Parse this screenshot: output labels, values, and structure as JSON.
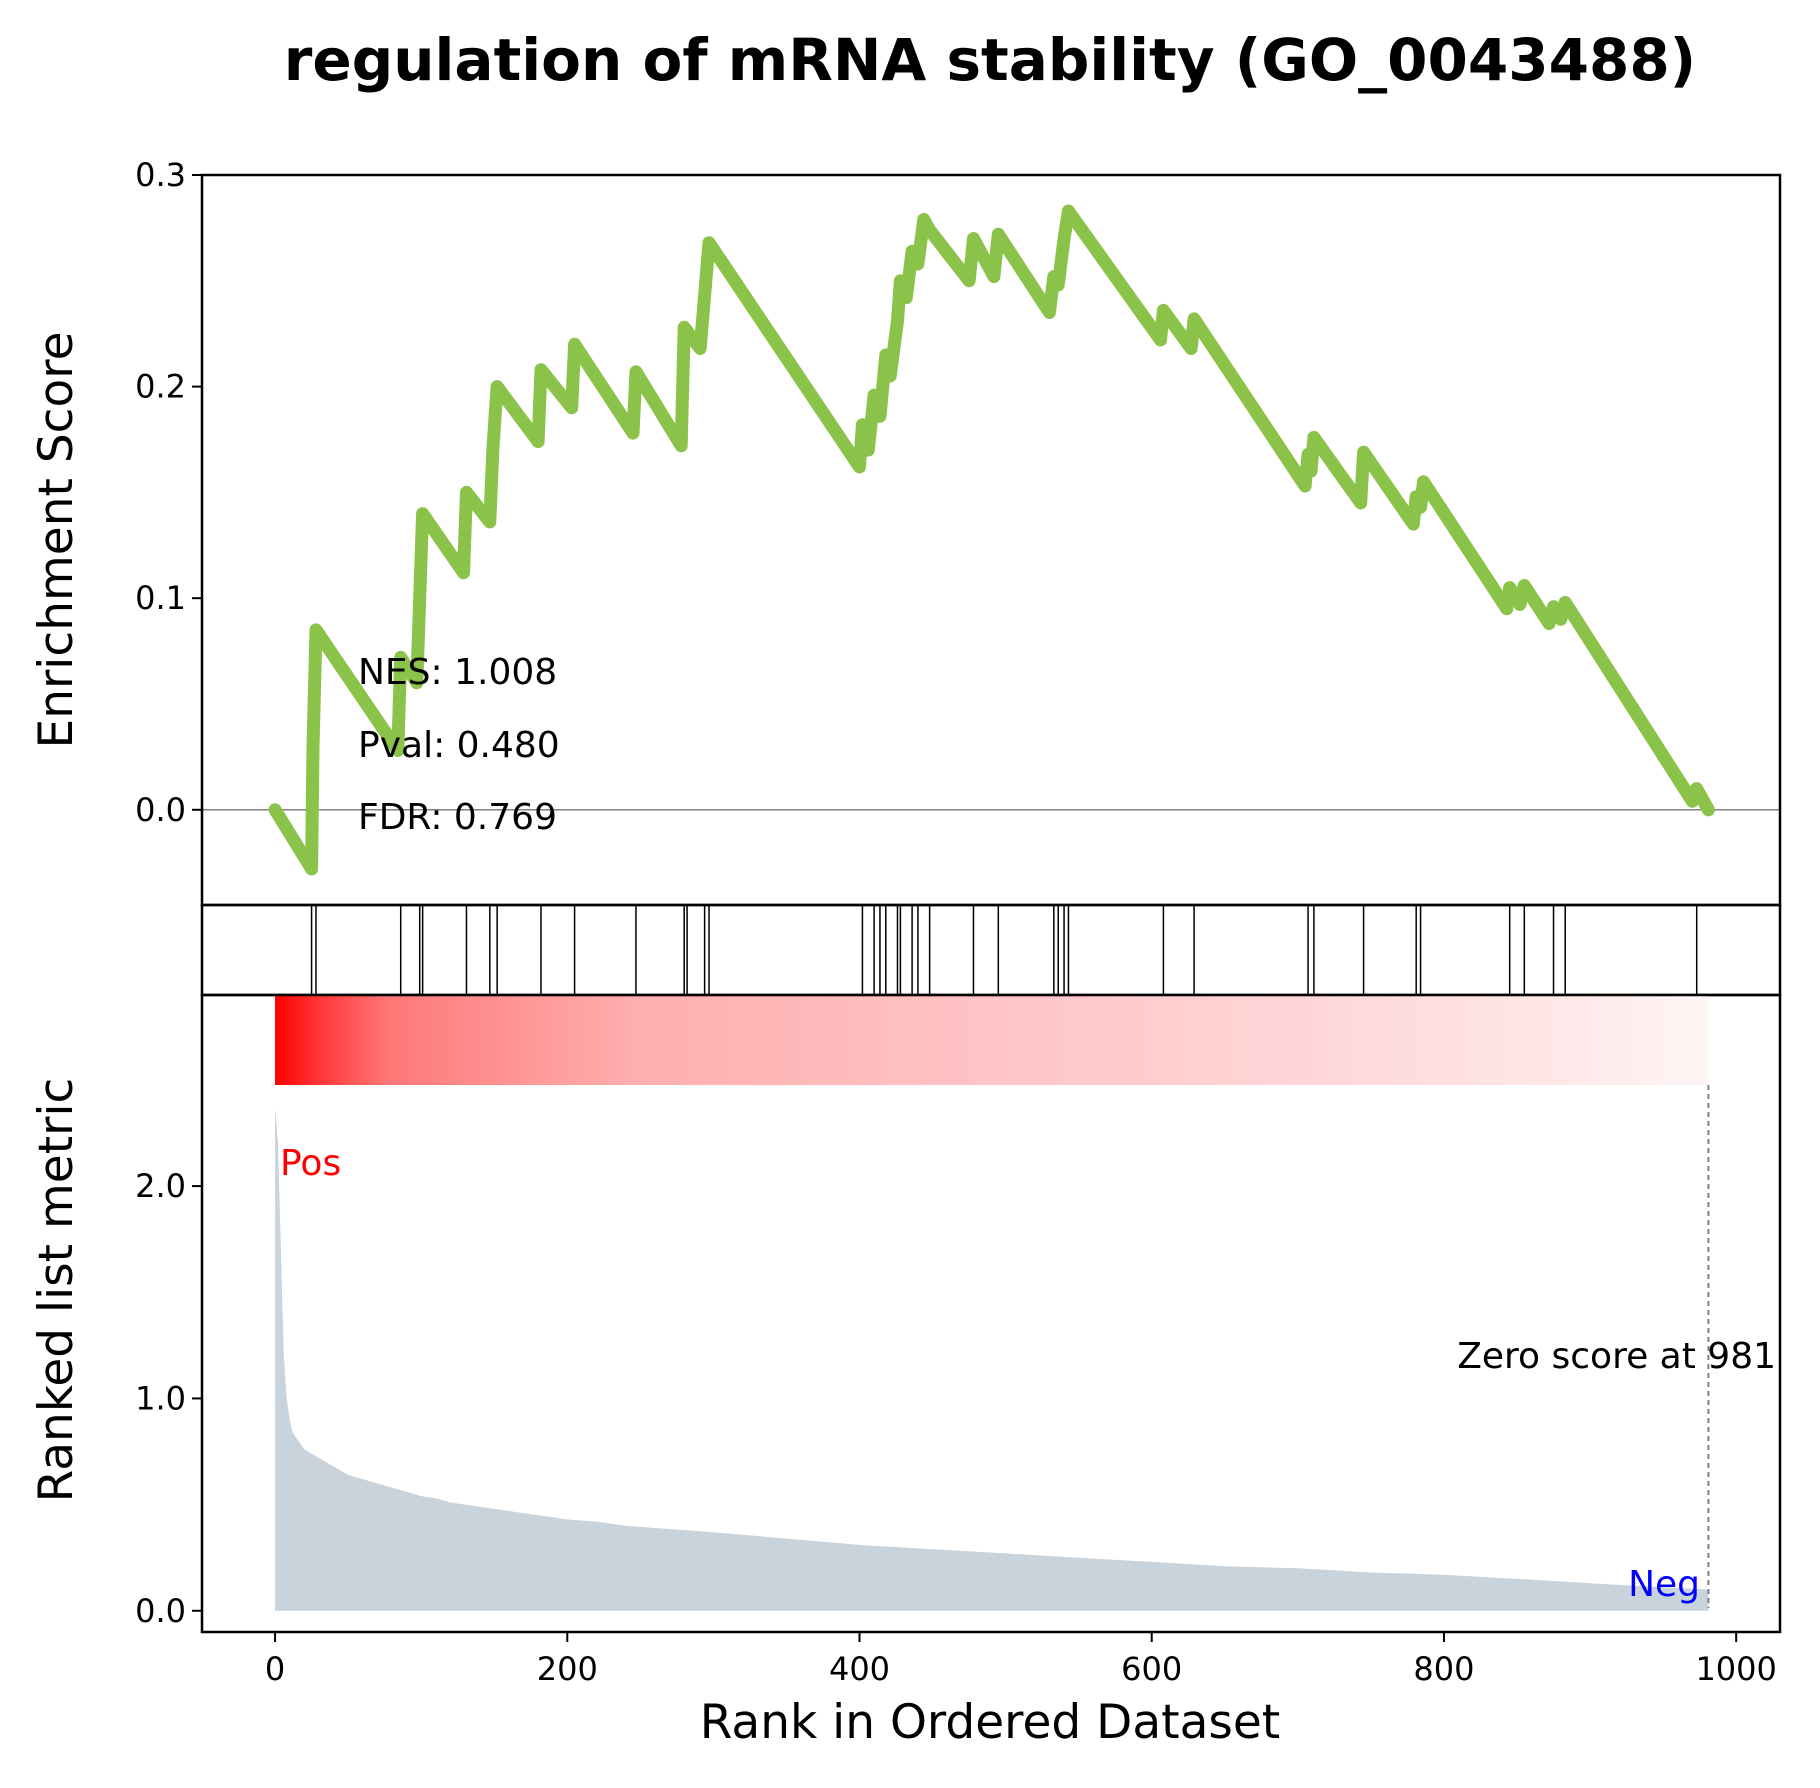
{
  "chart_data": {
    "type": "line",
    "title": "regulation of mRNA stability (GO_0043488)",
    "xlabel": "Rank in Ordered Dataset",
    "xlim": [
      -50,
      1030
    ],
    "x_ticks": [
      0,
      200,
      400,
      600,
      800,
      1000
    ],
    "es_panel": {
      "ylabel": "Enrichment Score",
      "ylim": [
        -0.045,
        0.3
      ],
      "y_ticks": [
        "0.0",
        "0.1",
        "0.2",
        "0.3"
      ],
      "line_color": "#8bc34a",
      "x": [
        0,
        25,
        26,
        28,
        84,
        86,
        97,
        99,
        101,
        129,
        131,
        147,
        149,
        152,
        180,
        182,
        203,
        205,
        245,
        247,
        278,
        280,
        291,
        294,
        297,
        400,
        402,
        406,
        410,
        414,
        418,
        421,
        426,
        428,
        432,
        436,
        440,
        444,
        448,
        475,
        478,
        492,
        495,
        530,
        533,
        536,
        540,
        543,
        606,
        608,
        627,
        629,
        705,
        707,
        709,
        711,
        743,
        745,
        779,
        781,
        784,
        786,
        843,
        845,
        852,
        855,
        872,
        875,
        880,
        883,
        970,
        973,
        981
      ],
      "y": [
        0.0,
        -0.028,
        0.03,
        0.085,
        0.028,
        0.072,
        0.06,
        0.1,
        0.14,
        0.112,
        0.15,
        0.136,
        0.17,
        0.2,
        0.174,
        0.208,
        0.19,
        0.22,
        0.178,
        0.207,
        0.172,
        0.228,
        0.218,
        0.243,
        0.268,
        0.162,
        0.182,
        0.17,
        0.196,
        0.186,
        0.215,
        0.205,
        0.231,
        0.25,
        0.242,
        0.264,
        0.258,
        0.279,
        0.274,
        0.25,
        0.27,
        0.252,
        0.272,
        0.235,
        0.252,
        0.248,
        0.27,
        0.283,
        0.222,
        0.236,
        0.218,
        0.232,
        0.153,
        0.168,
        0.16,
        0.176,
        0.145,
        0.169,
        0.135,
        0.148,
        0.143,
        0.155,
        0.095,
        0.105,
        0.097,
        0.106,
        0.088,
        0.096,
        0.09,
        0.098,
        0.004,
        0.01,
        0.0
      ]
    },
    "hits": [
      25,
      28,
      86,
      99,
      101,
      131,
      147,
      152,
      182,
      205,
      247,
      280,
      282,
      294,
      297,
      402,
      410,
      414,
      418,
      426,
      428,
      436,
      440,
      448,
      478,
      495,
      533,
      536,
      540,
      543,
      608,
      629,
      707,
      711,
      745,
      781,
      784,
      845,
      855,
      875,
      883,
      973
    ],
    "rank_panel": {
      "ylabel": "Ranked list metric",
      "ylim": [
        -0.1,
        2.9
      ],
      "y_ticks": [
        "0.0",
        "1.0",
        "2.0"
      ],
      "fill_color": "#c9d3db",
      "x": [
        0,
        2,
        4,
        6,
        8,
        10,
        12,
        14,
        16,
        18,
        20,
        25,
        30,
        35,
        40,
        45,
        50,
        60,
        70,
        80,
        90,
        100,
        110,
        120,
        130,
        140,
        150,
        160,
        170,
        180,
        190,
        200,
        220,
        240,
        260,
        280,
        300,
        350,
        400,
        450,
        500,
        550,
        600,
        650,
        700,
        750,
        800,
        850,
        900,
        950,
        981
      ],
      "y": [
        2.37,
        2.2,
        1.7,
        1.2,
        1.0,
        0.9,
        0.84,
        0.82,
        0.8,
        0.78,
        0.76,
        0.74,
        0.72,
        0.7,
        0.68,
        0.66,
        0.64,
        0.62,
        0.6,
        0.58,
        0.56,
        0.54,
        0.53,
        0.51,
        0.5,
        0.49,
        0.48,
        0.47,
        0.46,
        0.45,
        0.44,
        0.43,
        0.42,
        0.4,
        0.39,
        0.38,
        0.37,
        0.34,
        0.31,
        0.29,
        0.27,
        0.25,
        0.23,
        0.21,
        0.2,
        0.18,
        0.17,
        0.15,
        0.13,
        0.11,
        0.1
      ],
      "zero_score_at": 981,
      "zero_score_label": "Zero score at 981",
      "pos_label": "Pos",
      "neg_label": "Neg"
    },
    "stats": {
      "nes": "NES: 1.008",
      "pval": "Pval: 0.480",
      "fdr": "FDR: 0.769"
    }
  }
}
